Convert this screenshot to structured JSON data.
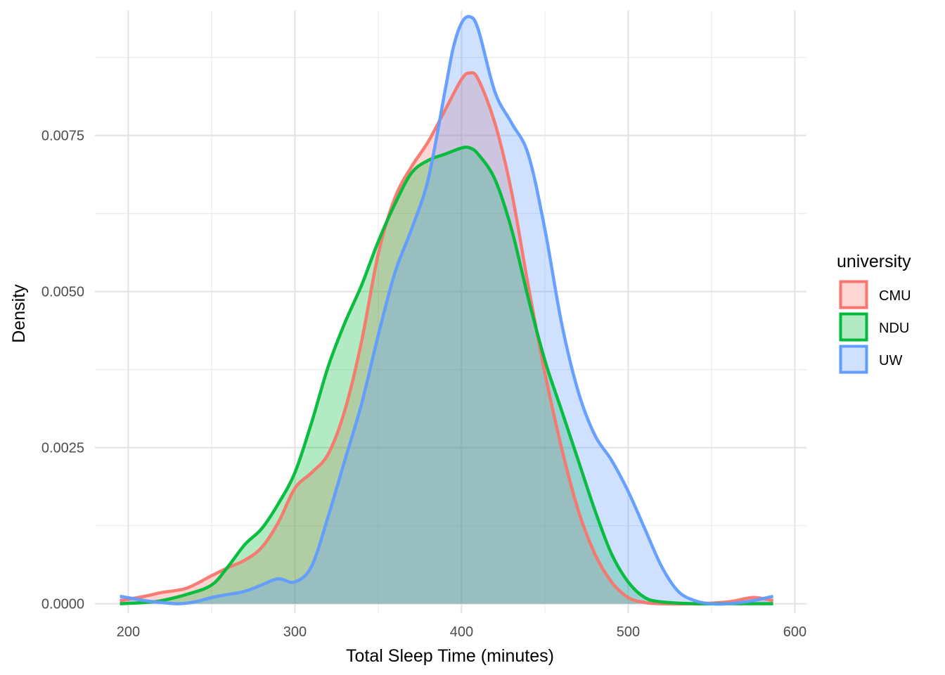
{
  "chart_data": {
    "type": "area",
    "subtype": "density",
    "title": "",
    "xlabel": "Total Sleep Time (minutes)",
    "ylabel": "Density",
    "xlim": [
      180,
      607
    ],
    "ylim": [
      -0.00015,
      0.0095
    ],
    "x_ticks": [
      200,
      300,
      400,
      500,
      600
    ],
    "y_ticks": [
      0.0,
      0.0025,
      0.005,
      0.0075
    ],
    "x_tick_labels": [
      "200",
      "300",
      "400",
      "500",
      "600"
    ],
    "y_tick_labels": [
      "0.0000",
      "0.0025",
      "0.0050",
      "0.0075"
    ],
    "grid": true,
    "legend": {
      "title": "university",
      "position": "right"
    },
    "series": [
      {
        "name": "CMU",
        "color": "#F8766D",
        "x": [
          195,
          210,
          220,
          235,
          250,
          260,
          270,
          280,
          290,
          300,
          310,
          320,
          330,
          340,
          350,
          360,
          370,
          380,
          390,
          400,
          405,
          410,
          420,
          430,
          440,
          450,
          460,
          470,
          480,
          490,
          500,
          510,
          520,
          540,
          560,
          575,
          587
        ],
        "y": [
          5e-05,
          0.00012,
          0.00018,
          0.00025,
          0.00045,
          0.00058,
          0.0007,
          0.0009,
          0.0013,
          0.00185,
          0.0021,
          0.0024,
          0.0031,
          0.0042,
          0.0056,
          0.0065,
          0.007,
          0.0074,
          0.0079,
          0.0084,
          0.0085,
          0.0084,
          0.0077,
          0.0066,
          0.0051,
          0.0037,
          0.0025,
          0.0015,
          0.0008,
          0.00035,
          0.0001,
          2e-05,
          0.0,
          0.0,
          3e-05,
          0.0001,
          5e-05
        ]
      },
      {
        "name": "NDU",
        "color": "#00BA38",
        "x": [
          195,
          210,
          220,
          235,
          250,
          260,
          270,
          280,
          290,
          300,
          310,
          320,
          330,
          340,
          350,
          360,
          370,
          380,
          390,
          400,
          405,
          410,
          420,
          430,
          440,
          450,
          460,
          470,
          480,
          490,
          500,
          510,
          520,
          540,
          560,
          587
        ],
        "y": [
          0.0,
          2e-05,
          5e-05,
          0.00015,
          0.0003,
          0.0006,
          0.00095,
          0.0012,
          0.0016,
          0.0021,
          0.0029,
          0.0038,
          0.0045,
          0.0051,
          0.0058,
          0.0064,
          0.0069,
          0.0071,
          0.0072,
          0.0073,
          0.0073,
          0.0072,
          0.0068,
          0.006,
          0.0049,
          0.0039,
          0.0031,
          0.0023,
          0.0015,
          0.0008,
          0.00035,
          0.0001,
          3e-05,
          0.0,
          0.0,
          0.0
        ]
      },
      {
        "name": "UW",
        "color": "#619CFF",
        "x": [
          195,
          210,
          220,
          230,
          240,
          250,
          260,
          270,
          280,
          290,
          300,
          310,
          320,
          330,
          340,
          350,
          360,
          370,
          380,
          390,
          395,
          400,
          405,
          410,
          420,
          430,
          440,
          450,
          460,
          470,
          480,
          490,
          500,
          510,
          520,
          530,
          540,
          550,
          560,
          575,
          587
        ],
        "y": [
          0.00012,
          5e-05,
          2e-05,
          0.0,
          3e-05,
          0.0001,
          0.00015,
          0.0002,
          0.0003,
          0.0004,
          0.00035,
          0.0006,
          0.0014,
          0.0023,
          0.0032,
          0.0043,
          0.0053,
          0.006,
          0.0068,
          0.0082,
          0.0089,
          0.0093,
          0.0094,
          0.0092,
          0.0082,
          0.0077,
          0.0072,
          0.006,
          0.0045,
          0.0034,
          0.0027,
          0.0023,
          0.0018,
          0.0012,
          0.0006,
          0.0002,
          5e-05,
          0.0,
          0.0,
          5e-05,
          0.00012
        ]
      }
    ]
  }
}
